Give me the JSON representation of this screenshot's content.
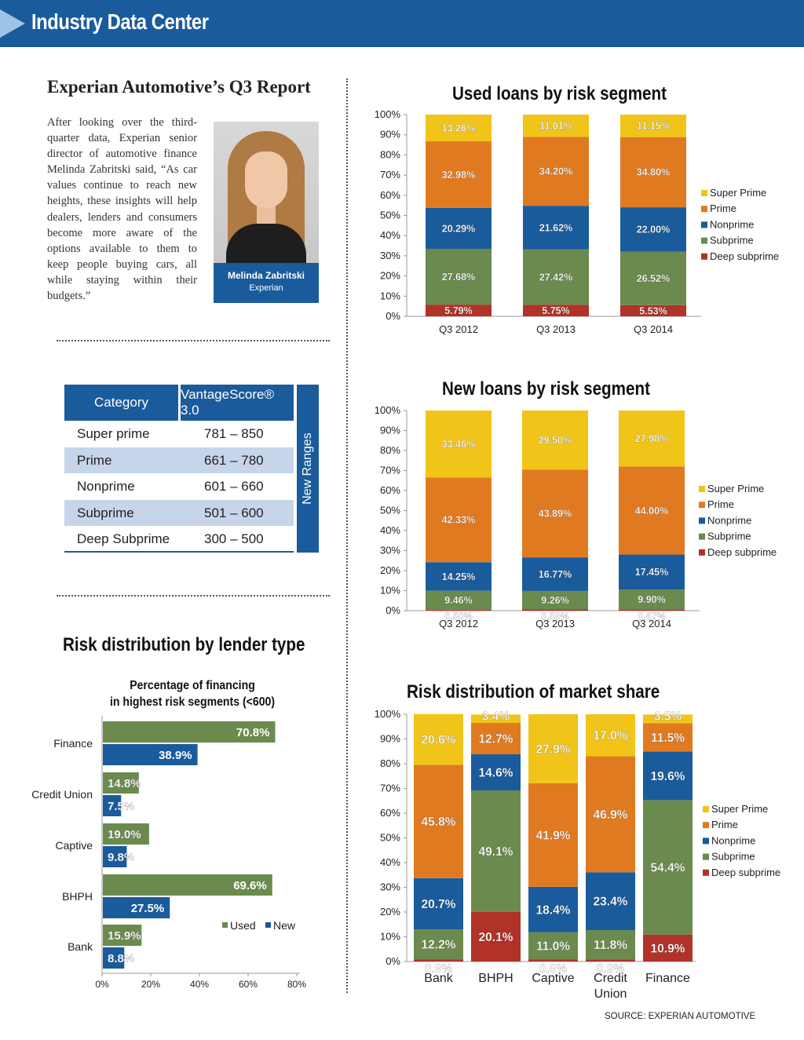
{
  "header": {
    "title": "Industry Data Center",
    "icon": "play-triangle-icon"
  },
  "article": {
    "title": "Experian Automotive’s Q3 Report",
    "body": "After looking over the third-quarter data, Experian senior director of automotive finance Melinda Zabritski said, “As car values continue to reach new heights, these insights will help dealers, lenders and consumers become more aware of the options available to them to keep people buying cars, all while staying within their budgets.”",
    "photo_caption_name": "Melinda Zabritski",
    "photo_caption_org": "Experian"
  },
  "vantage_table": {
    "headers": [
      "Category",
      "VantageScore® 3.0"
    ],
    "side_label": "New Ranges",
    "rows": [
      {
        "category": "Super prime",
        "range": "781 – 850"
      },
      {
        "category": "Prime",
        "range": "661 – 780"
      },
      {
        "category": "Nonprime",
        "range": "601 – 660"
      },
      {
        "category": "Subprime",
        "range": "501 – 600"
      },
      {
        "category": "Deep Subprime",
        "range": "300 – 500"
      }
    ]
  },
  "colors": {
    "super_prime": "#f0c419",
    "prime": "#e07a21",
    "nonprime": "#1a5b9c",
    "subprime": "#6b8a4e",
    "deep_subprime": "#b03228",
    "used": "#6b8a4e",
    "new": "#1a5b9c",
    "brand_blue": "#1a5b9c"
  },
  "source": "SOURCE: EXPERIAN AUTOMOTIVE",
  "chart_data": [
    {
      "id": "used",
      "type": "bar",
      "stacked": true,
      "title": "Used loans by risk segment",
      "categories": [
        "Q3 2012",
        "Q3 2013",
        "Q3 2014"
      ],
      "series": [
        {
          "name": "Deep subprime",
          "values": [
            5.79,
            5.75,
            5.53
          ]
        },
        {
          "name": "Subprime",
          "values": [
            27.68,
            27.42,
            26.52
          ]
        },
        {
          "name": "Nonprime",
          "values": [
            20.29,
            21.62,
            22.0
          ]
        },
        {
          "name": "Prime",
          "values": [
            32.98,
            34.2,
            34.8
          ]
        },
        {
          "name": "Super Prime",
          "values": [
            13.26,
            11.01,
            11.15
          ]
        }
      ],
      "legend": [
        "Super Prime",
        "Prime",
        "Nonprime",
        "Subprime",
        "Deep subprime"
      ],
      "legend_position": "right",
      "yticks": [
        "0%",
        "10%",
        "20%",
        "30%",
        "40%",
        "50%",
        "60%",
        "70%",
        "80%",
        "90%",
        "100%"
      ],
      "ylim": [
        0,
        100
      ]
    },
    {
      "id": "new",
      "type": "bar",
      "stacked": true,
      "title": "New loans by risk segment",
      "categories": [
        "Q3 2012",
        "Q3 2013",
        "Q3 2014"
      ],
      "series": [
        {
          "name": "Deep subprime",
          "values": [
            0.5,
            0.59,
            0.67
          ]
        },
        {
          "name": "Subprime",
          "values": [
            9.46,
            9.26,
            9.9
          ]
        },
        {
          "name": "Nonprime",
          "values": [
            14.25,
            16.77,
            17.45
          ]
        },
        {
          "name": "Prime",
          "values": [
            42.33,
            43.89,
            44.0
          ]
        },
        {
          "name": "Super Prime",
          "values": [
            33.46,
            29.5,
            27.98
          ]
        }
      ],
      "legend": [
        "Super Prime",
        "Prime",
        "Nonprime",
        "Subprime",
        "Deep subprime"
      ],
      "legend_position": "right",
      "yticks": [
        "0%",
        "10%",
        "20%",
        "30%",
        "40%",
        "50%",
        "60%",
        "70%",
        "80%",
        "90%",
        "100%"
      ],
      "ylim": [
        0,
        100
      ]
    },
    {
      "id": "lender",
      "type": "bar",
      "orientation": "horizontal",
      "title": "Risk distribution by lender type",
      "subtitle": "Percentage of financing\nin highest risk segments (<600)",
      "categories": [
        "Finance",
        "Credit Union",
        "Captive",
        "BHPH",
        "Bank"
      ],
      "series": [
        {
          "name": "Used",
          "values": [
            70.8,
            14.8,
            19.0,
            69.6,
            15.9
          ]
        },
        {
          "name": "New",
          "values": [
            38.9,
            7.5,
            9.8,
            27.5,
            8.8
          ]
        }
      ],
      "legend": [
        "Used",
        "New"
      ],
      "legend_position": "bottom-right",
      "xticks": [
        "0%",
        "20%",
        "40%",
        "60%",
        "80%"
      ],
      "xlim": [
        0,
        80
      ]
    },
    {
      "id": "market",
      "type": "bar",
      "stacked": true,
      "title": "Risk distribution of market share",
      "categories": [
        "Bank",
        "BHPH",
        "Captive",
        "Credit Union",
        "Finance"
      ],
      "series": [
        {
          "name": "Deep subprime",
          "values": [
            0.8,
            20.1,
            0.8,
            0.9,
            10.9
          ]
        },
        {
          "name": "Subprime",
          "values": [
            12.2,
            49.1,
            11.0,
            11.8,
            54.4
          ]
        },
        {
          "name": "Nonprime",
          "values": [
            20.7,
            14.6,
            18.4,
            23.4,
            19.6
          ]
        },
        {
          "name": "Prime",
          "values": [
            45.8,
            12.7,
            41.9,
            46.9,
            11.5
          ]
        },
        {
          "name": "Super Prime",
          "values": [
            20.6,
            3.4,
            27.9,
            17.0,
            3.5
          ]
        }
      ],
      "legend": [
        "Super Prime",
        "Prime",
        "Nonprime",
        "Subprime",
        "Deep subprime"
      ],
      "legend_position": "right",
      "yticks": [
        "0%",
        "10%",
        "20%",
        "30%",
        "40%",
        "50%",
        "60%",
        "70%",
        "80%",
        "90%",
        "100%"
      ],
      "ylim": [
        0,
        100
      ]
    }
  ]
}
